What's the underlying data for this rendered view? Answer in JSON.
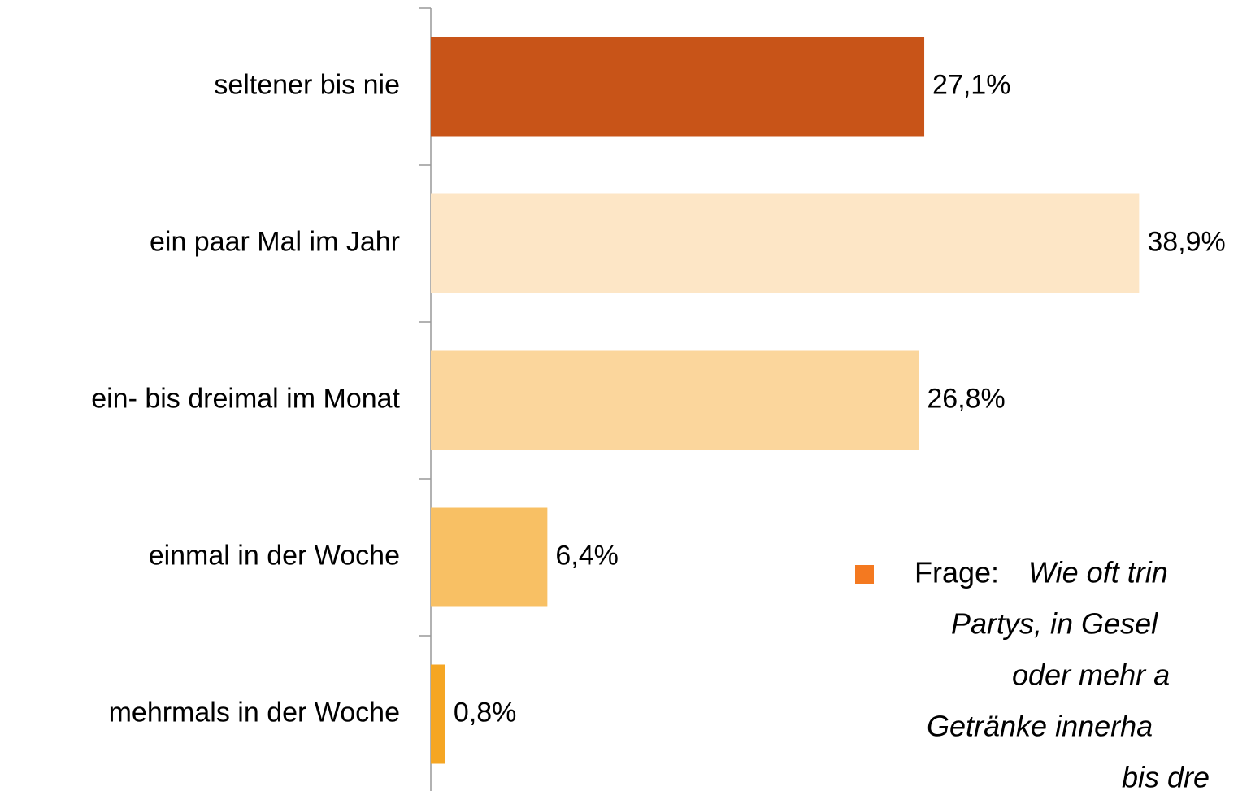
{
  "chart_data": {
    "type": "hbar",
    "categories": [
      "seltener bis nie",
      "ein paar Mal im Jahr",
      "ein- bis dreimal im Monat",
      "einmal in der Woche",
      "mehrmals in der Woche"
    ],
    "values": [
      27.1,
      38.9,
      26.8,
      6.4,
      0.8
    ],
    "value_labels": [
      "27,1%",
      "38,9%",
      "26,8%",
      "6,4%",
      "0,8%"
    ],
    "colors": [
      "#c85418",
      "#fde6c6",
      "#fbd69c",
      "#f8c064",
      "#f5a623"
    ],
    "xlim": [
      0,
      45
    ],
    "annotation": {
      "label": "Frage:",
      "lines": [
        "Wie oft trin",
        "Partys, in Gesel",
        "oder mehr a",
        "Getränke innerha",
        "bis  dre"
      ]
    }
  }
}
